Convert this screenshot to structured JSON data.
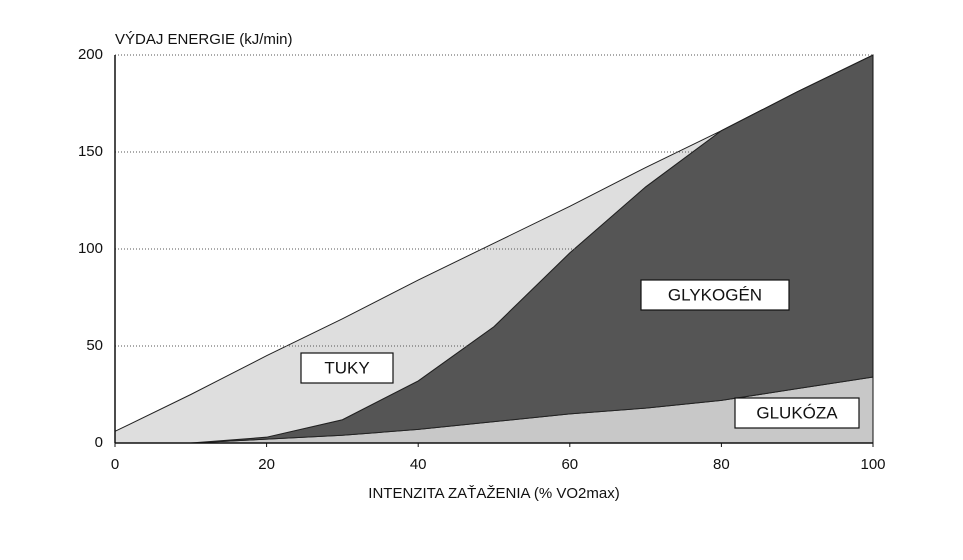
{
  "chart_data": {
    "type": "stacked-area",
    "y_label": "VÝDAJ ENERGIE (kJ/min)",
    "x_label": "INTENZITA ZAŤAŽENIA (% VO2max)",
    "x": [
      0,
      10,
      20,
      30,
      40,
      50,
      60,
      70,
      80,
      90,
      100
    ],
    "series": [
      {
        "name": "GLUKÓZA",
        "color": "#c8c8c8",
        "values": [
          0,
          0,
          2,
          4,
          7,
          11,
          15,
          18,
          22,
          28,
          34
        ]
      },
      {
        "name": "GLYKOGÉN",
        "color": "#555555",
        "values": [
          0,
          0,
          1,
          8,
          25,
          49,
          83,
          114,
          139,
          153,
          166
        ]
      },
      {
        "name": "TUKY",
        "color": "#dedede",
        "values": [
          6,
          25,
          42,
          52,
          52,
          43,
          24,
          10,
          0,
          0,
          0
        ]
      }
    ],
    "xlim": [
      0,
      100
    ],
    "xticks": [
      0,
      20,
      40,
      60,
      80,
      100
    ],
    "ylim": [
      0,
      200
    ],
    "yticks": [
      0,
      50,
      100,
      150,
      200
    ],
    "grid": true
  }
}
